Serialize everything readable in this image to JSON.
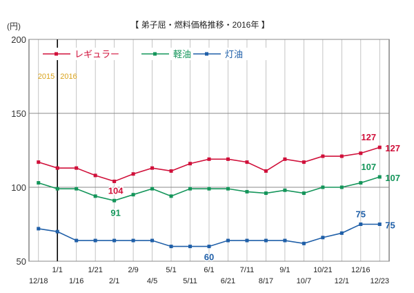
{
  "chart_data": {
    "type": "line",
    "title": "【 弟子屈・燃料価格推移・2016年 】",
    "ylabel": "(円)",
    "ylim": [
      50,
      200
    ],
    "yticks": [
      50,
      100,
      150,
      200
    ],
    "year_labels": [
      "2015",
      "2016"
    ],
    "x": [
      "12/18",
      "1/1",
      "1/16",
      "1/21",
      "2/1",
      "2/9",
      "4/5",
      "5/1",
      "5/11",
      "6/1",
      "6/21",
      "7/11",
      "8/17",
      "9/1",
      "10/7",
      "10/21",
      "12/1",
      "12/16",
      "12/23"
    ],
    "legend_position": "top-left",
    "grid": true,
    "series": [
      {
        "name": "レギュラー",
        "color": "#d0103a",
        "values": [
          117,
          113,
          113,
          108,
          104,
          109,
          113,
          111,
          116,
          119,
          119,
          117,
          111,
          119,
          117,
          121,
          121,
          123,
          127
        ]
      },
      {
        "name": "軽油",
        "color": "#14955a",
        "values": [
          103,
          99,
          99,
          94,
          91,
          95,
          99,
          94,
          99,
          99,
          99,
          97,
          96,
          98,
          96,
          100,
          100,
          103,
          107
        ]
      },
      {
        "name": "灯油",
        "color": "#1f5fa8",
        "values": [
          72,
          70,
          64,
          64,
          64,
          64,
          64,
          60,
          60,
          60,
          64,
          64,
          64,
          64,
          62,
          66,
          69,
          75,
          75
        ]
      }
    ],
    "annotations": [
      {
        "series": 0,
        "index": 18,
        "text": "127"
      },
      {
        "series": 0,
        "index": 18,
        "text": "127"
      },
      {
        "series": 0,
        "index": 4,
        "text": "104"
      },
      {
        "series": 1,
        "index": 18,
        "text": "107"
      },
      {
        "series": 1,
        "index": 18,
        "text": "107"
      },
      {
        "series": 1,
        "index": 4,
        "text": "91"
      },
      {
        "series": 2,
        "index": 17,
        "text": "75"
      },
      {
        "series": 2,
        "index": 18,
        "text": "75"
      },
      {
        "series": 2,
        "index": 9,
        "text": "60"
      }
    ]
  }
}
